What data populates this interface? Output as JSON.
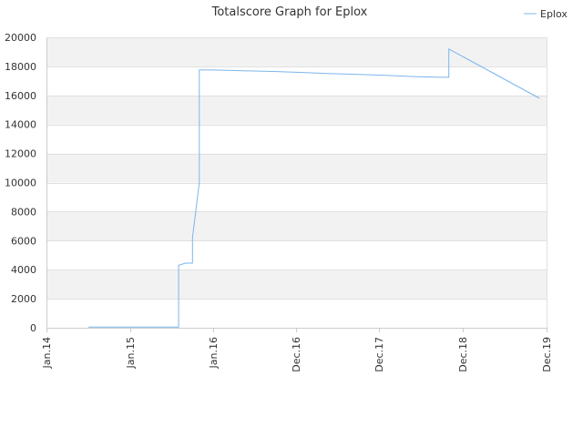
{
  "chart_data": {
    "type": "line",
    "title": "Totalscore Graph for Eplox",
    "xlabel": "",
    "ylabel": "",
    "legend_position": "top-right",
    "grid": true,
    "band_color": "#f2f2f2",
    "line_color": "#7cb5ec",
    "x_ticks": [
      "Jan.14",
      "Jan.15",
      "Jan.16",
      "Dec.16",
      "Dec.17",
      "Dec.18",
      "Dec.19"
    ],
    "x_range": [
      "2014-01",
      "2019-12"
    ],
    "ylim": [
      0,
      20000
    ],
    "y_ticks": [
      0,
      2000,
      4000,
      6000,
      8000,
      10000,
      12000,
      14000,
      16000,
      18000,
      20000
    ],
    "series": [
      {
        "name": "Eplox",
        "points": [
          [
            "2014-07",
            50
          ],
          [
            "2015-08",
            50
          ],
          [
            "2015-08",
            4300
          ],
          [
            "2015-09",
            4450
          ],
          [
            "2015-10",
            4450
          ],
          [
            "2015-10",
            6000
          ],
          [
            "2015-10",
            6200
          ],
          [
            "2015-11",
            10000
          ],
          [
            "2015-11",
            14800
          ],
          [
            "2015-11",
            17750
          ],
          [
            "2016-01",
            17750
          ],
          [
            "2016-05",
            17700
          ],
          [
            "2016-09",
            17650
          ],
          [
            "2017-01",
            17580
          ],
          [
            "2017-05",
            17500
          ],
          [
            "2017-09",
            17450
          ],
          [
            "2018-01",
            17380
          ],
          [
            "2018-05",
            17300
          ],
          [
            "2018-09",
            17250
          ],
          [
            "2018-10",
            17250
          ],
          [
            "2018-10",
            19000
          ],
          [
            "2018-10",
            19200
          ],
          [
            "2019-11",
            15800
          ]
        ]
      }
    ]
  }
}
